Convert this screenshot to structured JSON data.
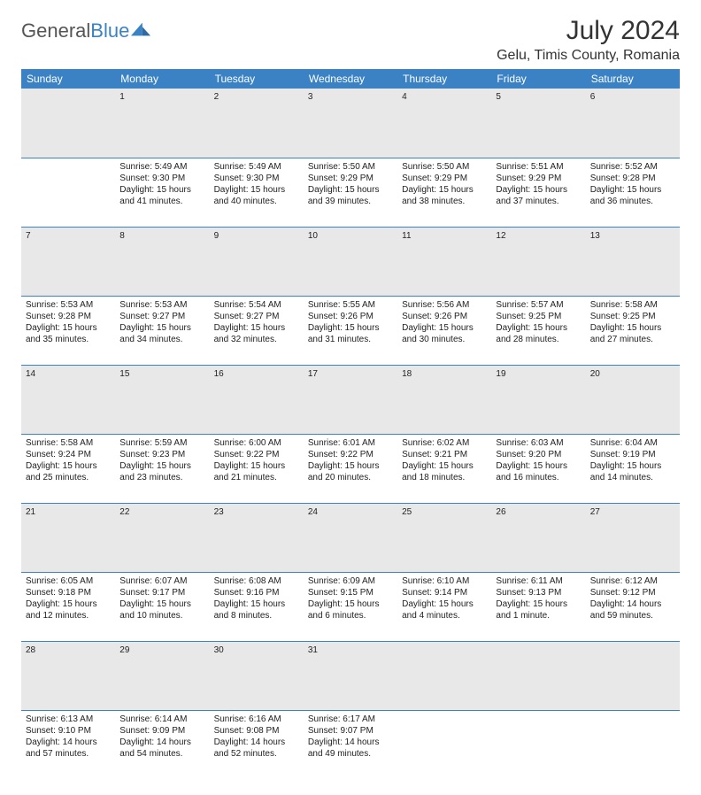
{
  "logo": {
    "text1": "General",
    "text2": "Blue"
  },
  "title": "July 2024",
  "location": "Gelu, Timis County, Romania",
  "colors": {
    "header_bg": "#3b82c4",
    "header_text": "#ffffff",
    "daynum_bg": "#e8e8e8",
    "row_border": "#3b82c4",
    "body_text": "#222222"
  },
  "weekdays": [
    "Sunday",
    "Monday",
    "Tuesday",
    "Wednesday",
    "Thursday",
    "Friday",
    "Saturday"
  ],
  "weeks": [
    {
      "nums": [
        "",
        "1",
        "2",
        "3",
        "4",
        "5",
        "6"
      ],
      "cells": [
        null,
        {
          "sunrise": "Sunrise: 5:49 AM",
          "sunset": "Sunset: 9:30 PM",
          "day1": "Daylight: 15 hours",
          "day2": "and 41 minutes."
        },
        {
          "sunrise": "Sunrise: 5:49 AM",
          "sunset": "Sunset: 9:30 PM",
          "day1": "Daylight: 15 hours",
          "day2": "and 40 minutes."
        },
        {
          "sunrise": "Sunrise: 5:50 AM",
          "sunset": "Sunset: 9:29 PM",
          "day1": "Daylight: 15 hours",
          "day2": "and 39 minutes."
        },
        {
          "sunrise": "Sunrise: 5:50 AM",
          "sunset": "Sunset: 9:29 PM",
          "day1": "Daylight: 15 hours",
          "day2": "and 38 minutes."
        },
        {
          "sunrise": "Sunrise: 5:51 AM",
          "sunset": "Sunset: 9:29 PM",
          "day1": "Daylight: 15 hours",
          "day2": "and 37 minutes."
        },
        {
          "sunrise": "Sunrise: 5:52 AM",
          "sunset": "Sunset: 9:28 PM",
          "day1": "Daylight: 15 hours",
          "day2": "and 36 minutes."
        }
      ]
    },
    {
      "nums": [
        "7",
        "8",
        "9",
        "10",
        "11",
        "12",
        "13"
      ],
      "cells": [
        {
          "sunrise": "Sunrise: 5:53 AM",
          "sunset": "Sunset: 9:28 PM",
          "day1": "Daylight: 15 hours",
          "day2": "and 35 minutes."
        },
        {
          "sunrise": "Sunrise: 5:53 AM",
          "sunset": "Sunset: 9:27 PM",
          "day1": "Daylight: 15 hours",
          "day2": "and 34 minutes."
        },
        {
          "sunrise": "Sunrise: 5:54 AM",
          "sunset": "Sunset: 9:27 PM",
          "day1": "Daylight: 15 hours",
          "day2": "and 32 minutes."
        },
        {
          "sunrise": "Sunrise: 5:55 AM",
          "sunset": "Sunset: 9:26 PM",
          "day1": "Daylight: 15 hours",
          "day2": "and 31 minutes."
        },
        {
          "sunrise": "Sunrise: 5:56 AM",
          "sunset": "Sunset: 9:26 PM",
          "day1": "Daylight: 15 hours",
          "day2": "and 30 minutes."
        },
        {
          "sunrise": "Sunrise: 5:57 AM",
          "sunset": "Sunset: 9:25 PM",
          "day1": "Daylight: 15 hours",
          "day2": "and 28 minutes."
        },
        {
          "sunrise": "Sunrise: 5:58 AM",
          "sunset": "Sunset: 9:25 PM",
          "day1": "Daylight: 15 hours",
          "day2": "and 27 minutes."
        }
      ]
    },
    {
      "nums": [
        "14",
        "15",
        "16",
        "17",
        "18",
        "19",
        "20"
      ],
      "cells": [
        {
          "sunrise": "Sunrise: 5:58 AM",
          "sunset": "Sunset: 9:24 PM",
          "day1": "Daylight: 15 hours",
          "day2": "and 25 minutes."
        },
        {
          "sunrise": "Sunrise: 5:59 AM",
          "sunset": "Sunset: 9:23 PM",
          "day1": "Daylight: 15 hours",
          "day2": "and 23 minutes."
        },
        {
          "sunrise": "Sunrise: 6:00 AM",
          "sunset": "Sunset: 9:22 PM",
          "day1": "Daylight: 15 hours",
          "day2": "and 21 minutes."
        },
        {
          "sunrise": "Sunrise: 6:01 AM",
          "sunset": "Sunset: 9:22 PM",
          "day1": "Daylight: 15 hours",
          "day2": "and 20 minutes."
        },
        {
          "sunrise": "Sunrise: 6:02 AM",
          "sunset": "Sunset: 9:21 PM",
          "day1": "Daylight: 15 hours",
          "day2": "and 18 minutes."
        },
        {
          "sunrise": "Sunrise: 6:03 AM",
          "sunset": "Sunset: 9:20 PM",
          "day1": "Daylight: 15 hours",
          "day2": "and 16 minutes."
        },
        {
          "sunrise": "Sunrise: 6:04 AM",
          "sunset": "Sunset: 9:19 PM",
          "day1": "Daylight: 15 hours",
          "day2": "and 14 minutes."
        }
      ]
    },
    {
      "nums": [
        "21",
        "22",
        "23",
        "24",
        "25",
        "26",
        "27"
      ],
      "cells": [
        {
          "sunrise": "Sunrise: 6:05 AM",
          "sunset": "Sunset: 9:18 PM",
          "day1": "Daylight: 15 hours",
          "day2": "and 12 minutes."
        },
        {
          "sunrise": "Sunrise: 6:07 AM",
          "sunset": "Sunset: 9:17 PM",
          "day1": "Daylight: 15 hours",
          "day2": "and 10 minutes."
        },
        {
          "sunrise": "Sunrise: 6:08 AM",
          "sunset": "Sunset: 9:16 PM",
          "day1": "Daylight: 15 hours",
          "day2": "and 8 minutes."
        },
        {
          "sunrise": "Sunrise: 6:09 AM",
          "sunset": "Sunset: 9:15 PM",
          "day1": "Daylight: 15 hours",
          "day2": "and 6 minutes."
        },
        {
          "sunrise": "Sunrise: 6:10 AM",
          "sunset": "Sunset: 9:14 PM",
          "day1": "Daylight: 15 hours",
          "day2": "and 4 minutes."
        },
        {
          "sunrise": "Sunrise: 6:11 AM",
          "sunset": "Sunset: 9:13 PM",
          "day1": "Daylight: 15 hours",
          "day2": "and 1 minute."
        },
        {
          "sunrise": "Sunrise: 6:12 AM",
          "sunset": "Sunset: 9:12 PM",
          "day1": "Daylight: 14 hours",
          "day2": "and 59 minutes."
        }
      ]
    },
    {
      "nums": [
        "28",
        "29",
        "30",
        "31",
        "",
        "",
        ""
      ],
      "cells": [
        {
          "sunrise": "Sunrise: 6:13 AM",
          "sunset": "Sunset: 9:10 PM",
          "day1": "Daylight: 14 hours",
          "day2": "and 57 minutes."
        },
        {
          "sunrise": "Sunrise: 6:14 AM",
          "sunset": "Sunset: 9:09 PM",
          "day1": "Daylight: 14 hours",
          "day2": "and 54 minutes."
        },
        {
          "sunrise": "Sunrise: 6:16 AM",
          "sunset": "Sunset: 9:08 PM",
          "day1": "Daylight: 14 hours",
          "day2": "and 52 minutes."
        },
        {
          "sunrise": "Sunrise: 6:17 AM",
          "sunset": "Sunset: 9:07 PM",
          "day1": "Daylight: 14 hours",
          "day2": "and 49 minutes."
        },
        null,
        null,
        null
      ]
    }
  ]
}
